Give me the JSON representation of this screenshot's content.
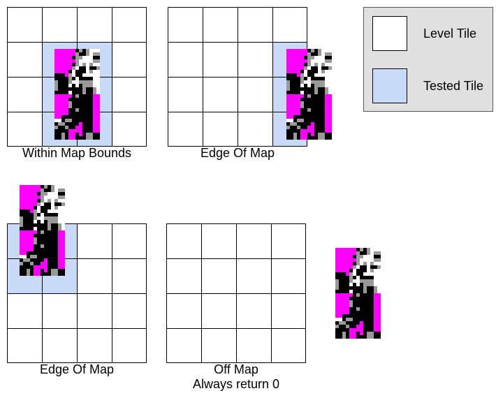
{
  "colors": {
    "level_tile": "#ffffff",
    "tested_tile": "#c9daf8",
    "legend_bg": "#e0e0e0",
    "sprite_magenta": "#ff00ff",
    "sprite_black": "#000000",
    "sprite_gray": "#999999",
    "sprite_white": "#ffffff"
  },
  "legend": {
    "level_tile_label": "Level Tile",
    "tested_tile_label": "Tested Tile"
  },
  "panels": [
    {
      "id": "within",
      "caption": "Within Map Bounds",
      "caption2": "",
      "tested": [
        [
          1,
          1
        ],
        [
          1,
          2
        ],
        [
          2,
          1
        ],
        [
          2,
          2
        ],
        [
          3,
          1
        ],
        [
          3,
          2
        ]
      ]
    },
    {
      "id": "edge-right",
      "caption": "Edge Of Map",
      "caption2": "",
      "tested": [
        [
          1,
          3
        ],
        [
          2,
          3
        ],
        [
          3,
          3
        ]
      ]
    },
    {
      "id": "edge-top",
      "caption": "Edge Of Map",
      "caption2": "",
      "tested": [
        [
          0,
          0
        ],
        [
          0,
          1
        ],
        [
          1,
          0
        ],
        [
          1,
          1
        ]
      ]
    },
    {
      "id": "off-map",
      "caption": "Off Map",
      "caption2": "Always return 0",
      "tested": []
    }
  ],
  "icons": {
    "sprite": "pixel-character-sprite-icon"
  }
}
